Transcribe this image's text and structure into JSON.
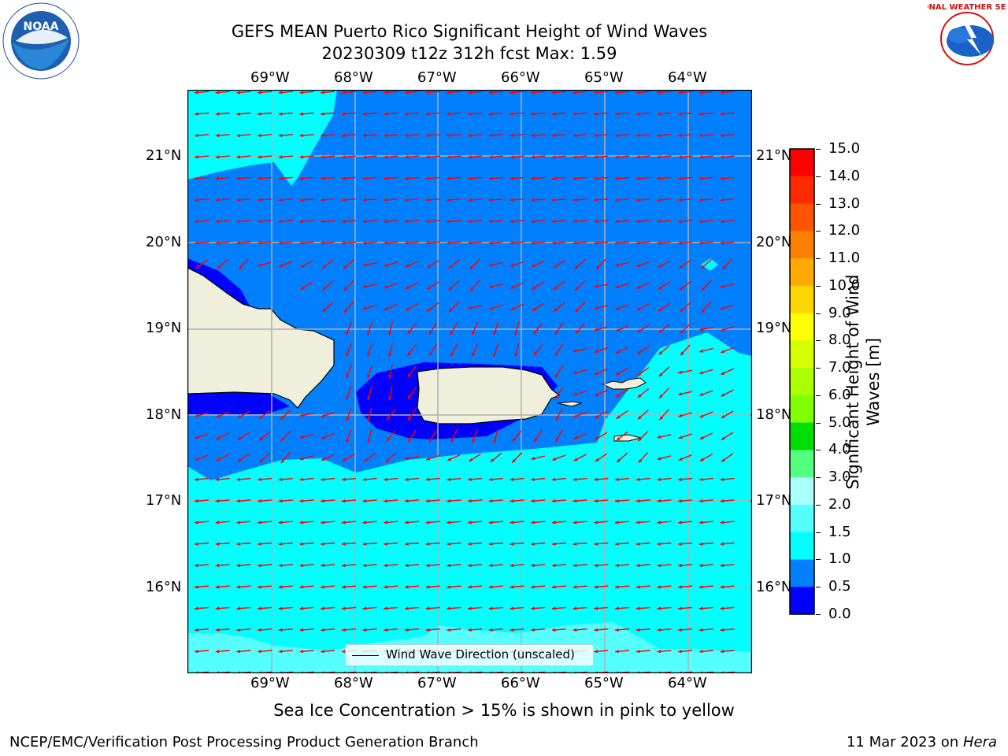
{
  "title": {
    "line1": "GEFS MEAN Puerto Rico Significant Height of Wind Waves",
    "line2": "20230309 t12z 312h fcst   Max: 1.59"
  },
  "logos": {
    "noaa_text": "NOAA",
    "nws_text": "NATIONAL WEATHER SERVICE"
  },
  "axes": {
    "lon_ticks": [
      "69°W",
      "68°W",
      "67°W",
      "66°W",
      "65°W",
      "64°W"
    ],
    "lat_ticks": [
      "21°N",
      "20°N",
      "19°N",
      "18°N",
      "17°N",
      "16°N"
    ]
  },
  "colorbar": {
    "label_line1": "Significant Height of Wind",
    "label_line2": "Waves [m]",
    "ticks": [
      "15.0",
      "14.0",
      "13.0",
      "12.0",
      "11.0",
      "10.0",
      "9.0",
      "8.0",
      "7.0",
      "6.0",
      "5.0",
      "4.0",
      "3.0",
      "2.0",
      "1.5",
      "1.0",
      "0.5",
      "0.0"
    ],
    "colors_top_to_bottom": [
      "#ff0000",
      "#ff2b00",
      "#ff5500",
      "#ff8000",
      "#ffaa00",
      "#ffd500",
      "#ffff00",
      "#d5ff00",
      "#aaff00",
      "#80ff00",
      "#00dd00",
      "#55ff80",
      "#aaffff",
      "#55ffff",
      "#00ffff",
      "#0080ff",
      "#0000ff"
    ]
  },
  "legend": {
    "label": "Wind Wave Direction (unscaled)"
  },
  "map_colors": {
    "ocean_low": "#0080ff",
    "ocean_mid": "#00ffff",
    "ocean_dark": "#0000ff",
    "ocean_light": "#55ffff",
    "land": "#efefdc",
    "arrow": "#ff0000"
  },
  "note": "Sea Ice Concentration > 15% is shown in pink to yellow",
  "footer": {
    "left": "NCEP/EMC/Verification Post Processing Product Generation Branch",
    "date": "11 Mar 2023 on ",
    "machine": "Hera"
  }
}
